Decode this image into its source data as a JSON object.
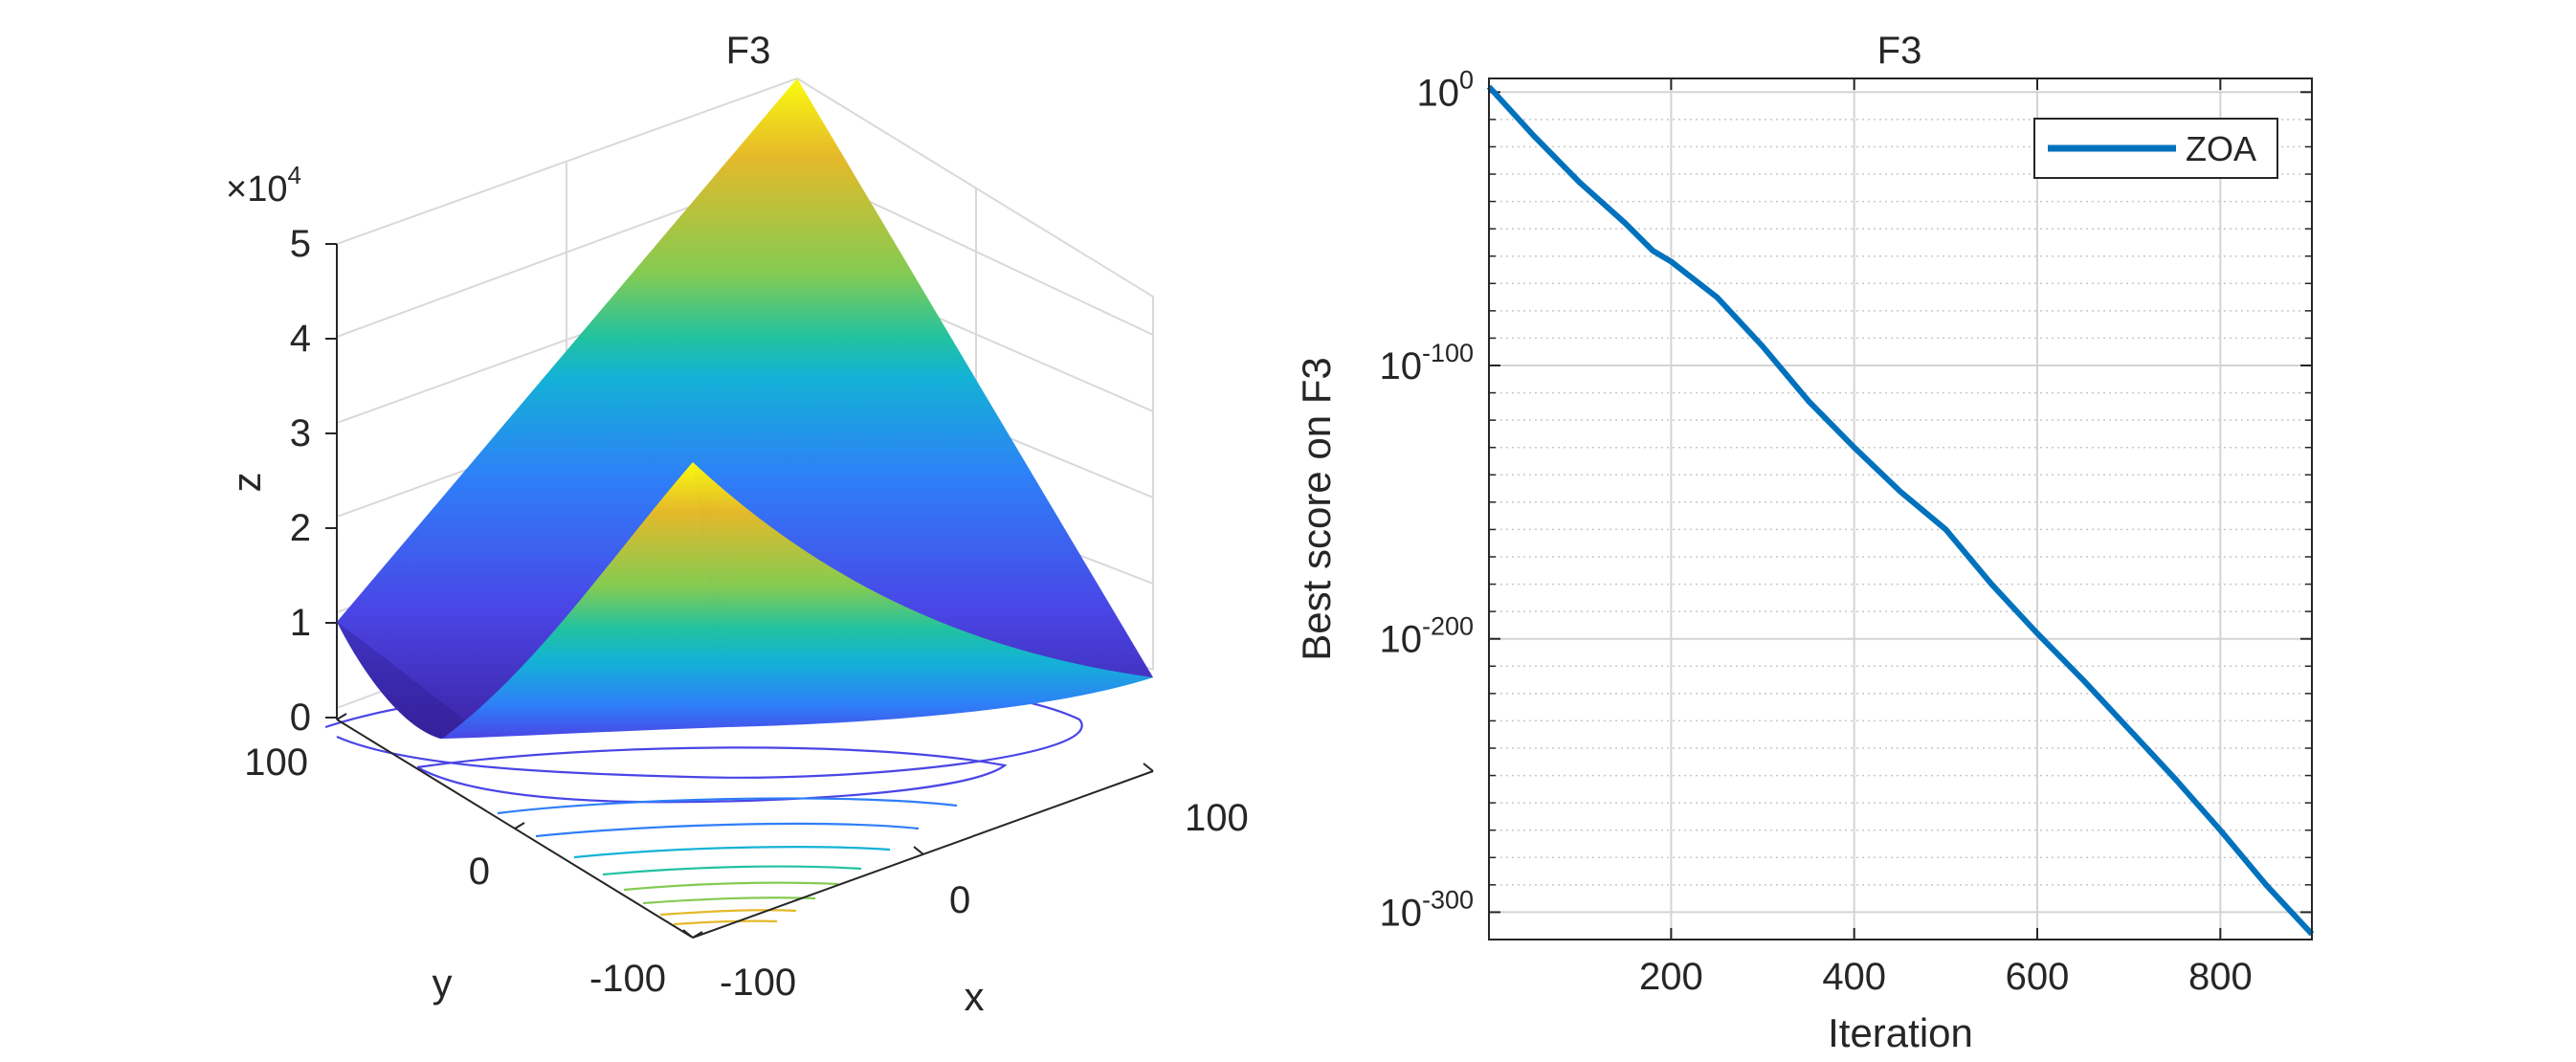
{
  "chart_data": [
    {
      "type": "surface",
      "title": "F3",
      "xlabel": "x",
      "ylabel": "y",
      "zlabel": "z",
      "z_exponent_label": "×10",
      "z_exponent_power": "4",
      "x_ticks": [
        "-100",
        "0",
        "100"
      ],
      "y_ticks": [
        "-100",
        "0",
        "100"
      ],
      "z_ticks": [
        "0",
        "1",
        "2",
        "3",
        "4",
        "5"
      ],
      "xlim": [
        -100,
        100
      ],
      "ylim": [
        -100,
        100
      ],
      "zlim": [
        0,
        50000
      ],
      "contour_below": true,
      "colormap": [
        "#3e26a8",
        "#4a45e6",
        "#2f7ef8",
        "#13b2d6",
        "#22c2a0",
        "#84cb52",
        "#e5b92a",
        "#f9fb0e"
      ]
    },
    {
      "type": "line",
      "title": "F3",
      "xlabel": "Iteration",
      "ylabel": "Best score on F3",
      "yscale": "log",
      "xlim": [
        1,
        900
      ],
      "ylim_exponent": [
        -310,
        5
      ],
      "x_ticks": [
        "200",
        "400",
        "600",
        "800"
      ],
      "y_tick_base": "10",
      "y_tick_exponents": [
        "0",
        "-100",
        "-200",
        "-300"
      ],
      "grid": true,
      "legend_position": "top-right",
      "series": [
        {
          "name": "ZOA",
          "color": "#0072bd",
          "x": [
            1,
            50,
            100,
            150,
            180,
            200,
            250,
            300,
            350,
            400,
            450,
            500,
            550,
            600,
            650,
            700,
            750,
            800,
            850,
            900
          ],
          "log10_y": [
            2,
            -16,
            -33,
            -48,
            -58,
            -62,
            -75,
            -93,
            -113,
            -130,
            -146,
            -160,
            -180,
            -198,
            -215,
            -233,
            -251,
            -270,
            -290,
            -308
          ]
        }
      ]
    }
  ]
}
